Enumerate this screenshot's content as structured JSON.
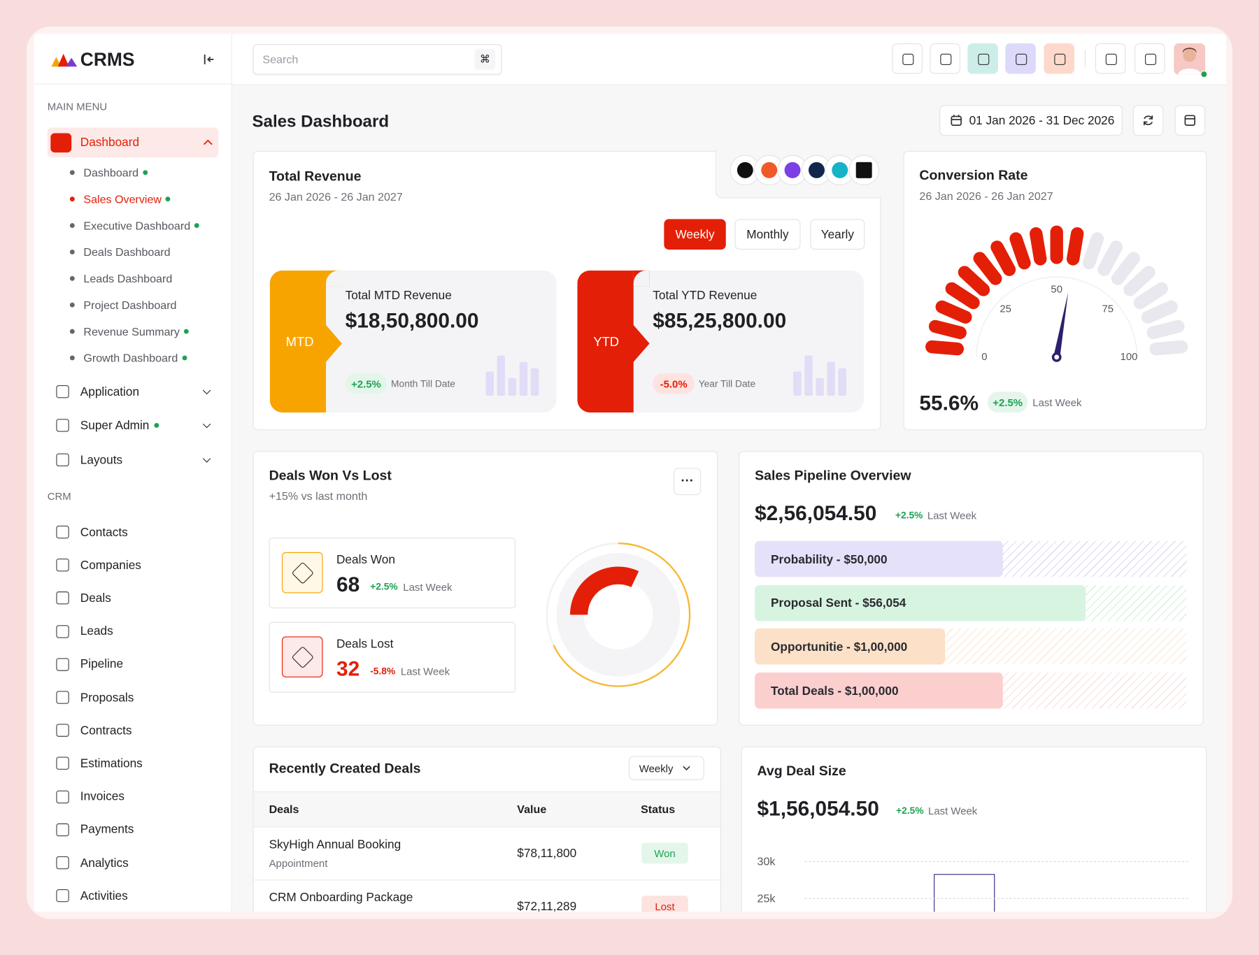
{
  "sidebar": {
    "brand": "CRMS",
    "main_menu_heading": "MAIN MENU",
    "dashboard": "Dashboard",
    "dashboard_items": [
      "Dashboard",
      "Sales Overview",
      "Executive Dashboard",
      "Deals Dashboard",
      "Leads Dashboard",
      "Project Dashboard",
      "Revenue Summary",
      "Growth Dashboard"
    ],
    "menu": [
      "Application",
      "Super Admin",
      "Layouts"
    ],
    "crm_heading": "CRM",
    "crm_items": [
      "Contacts",
      "Companies",
      "Deals",
      "Leads",
      "Pipeline",
      "Proposals",
      "Contracts",
      "Estimations",
      "Invoices",
      "Payments",
      "Analytics",
      "Activities"
    ]
  },
  "header": {
    "search_placeholder": "Search"
  },
  "page_title": "Sales Dashboard",
  "date_range": "01 Jan 2026 - 31 Dec 2026",
  "total_revenue": {
    "title": "Total Revenue",
    "period": "26 Jan 2026 - 26 Jan 2027",
    "tabs": [
      "Weekly",
      "Monthly",
      "Yearly"
    ],
    "mtd": {
      "tag": "MTD",
      "label": "Total MTD Revenue",
      "value": "$18,50,800.00",
      "change": "+2.5%",
      "note": "Month Till Date"
    },
    "ytd": {
      "tag": "YTD",
      "label": "Total YTD Revenue",
      "value": "$85,25,800.00",
      "change": "-5.0%",
      "note": "Year Till Date"
    }
  },
  "conversion_rate": {
    "title": "Conversion Rate",
    "period": "26 Jan 2026 - 26 Jan 2027",
    "gauge": {
      "ylim": [
        0,
        100
      ],
      "yticks": [
        0,
        25,
        50,
        75,
        100
      ],
      "value": 55.6,
      "value_label": "55.6%"
    },
    "change": "+2.5%",
    "note": "Last Week"
  },
  "deals_won_lost": {
    "title": "Deals Won Vs Lost",
    "subtitle": "+15% vs last month",
    "won": {
      "label": "Deals Won",
      "value": 68,
      "change": "+2.5%",
      "note": "Last Week"
    },
    "lost": {
      "label": "Deals Lost",
      "value": 32,
      "change": "-5.8%",
      "note": "Last Week"
    }
  },
  "sales_pipeline": {
    "title": "Sales Pipeline Overview",
    "value": "$2,56,054.50",
    "change": "+2.5%",
    "note": "Last Week",
    "stages": [
      "Probability - $50,000",
      "Proposal Sent - $56,054",
      "Opportunitie - $1,00,000",
      "Total Deals - $1,00,000"
    ]
  },
  "recent_deals": {
    "title": "Recently Created Deals",
    "filter": "Weekly",
    "columns": [
      "Deals",
      "Value",
      "Status"
    ],
    "rows": [
      {
        "deal": "SkyHigh Annual Booking",
        "type": "Appointment",
        "value": "$78,11,800",
        "status": "Won"
      },
      {
        "deal": "CRM Onboarding Package",
        "value": "$72,11,289",
        "status": "Lost"
      }
    ]
  },
  "avg_deal_size": {
    "title": "Avg Deal Size",
    "value": "$1,56,054.50",
    "change": "+2.5%",
    "note": "Last Week",
    "yticks": [
      "30k",
      "25k"
    ]
  }
}
